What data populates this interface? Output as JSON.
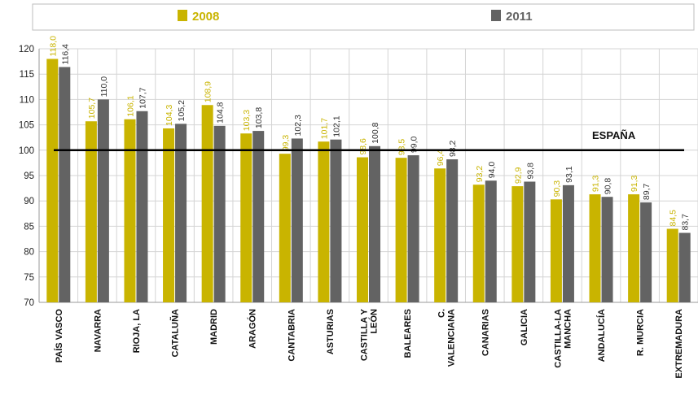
{
  "chart_data": {
    "type": "bar",
    "title": "",
    "xlabel": "",
    "ylabel": "",
    "ylim": [
      70,
      120
    ],
    "yticks": [
      70,
      75,
      80,
      85,
      90,
      95,
      100,
      105,
      110,
      115,
      120
    ],
    "grid": true,
    "legend_position": "top",
    "categories": [
      "PAÍS VASCO",
      "NAVARRA",
      "RIOJA, LA",
      "CATALUÑA",
      "MADRID",
      "ARAGÓN",
      "CANTABRIA",
      "ASTURIAS",
      "CASTILLA Y LEÓN",
      "BALEARES",
      "C. VALENCIANA",
      "CANARIAS",
      "GALICIA",
      "CASTILLA-LA MANCHA",
      "ANDALUCÍA",
      "R. MURCIA",
      "EXTREMADURA"
    ],
    "series": [
      {
        "name": "2008",
        "color": "#c9b400",
        "values": [
          118.0,
          105.7,
          106.1,
          104.3,
          108.9,
          103.3,
          99.3,
          101.7,
          98.6,
          98.5,
          96.4,
          93.2,
          92.9,
          90.3,
          91.3,
          91.3,
          84.5
        ]
      },
      {
        "name": "2011",
        "color": "#636363",
        "values": [
          116.4,
          110.0,
          107.7,
          105.2,
          104.8,
          103.8,
          102.3,
          102.1,
          100.8,
          99.0,
          98.2,
          94.0,
          93.8,
          93.1,
          90.8,
          89.7,
          83.7
        ]
      }
    ],
    "reference_line": {
      "label": "ESPAÑA",
      "value": 100
    }
  }
}
